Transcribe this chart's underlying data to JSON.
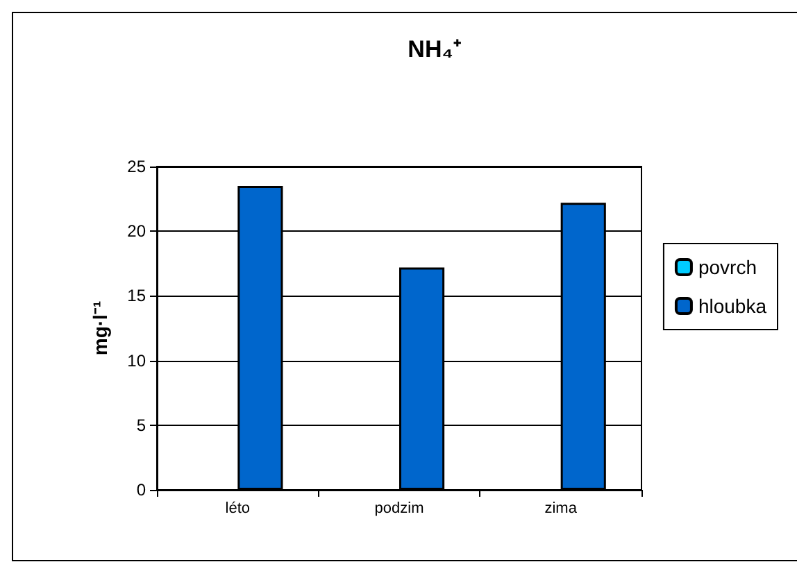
{
  "chart_data": {
    "type": "bar",
    "title": "NH₄⁺",
    "ylabel": "mg·l⁻¹",
    "categories": [
      "léto",
      "podzim",
      "zima"
    ],
    "series": [
      {
        "name": "povrch",
        "color": "#00ccff",
        "values": [
          null,
          null,
          null
        ]
      },
      {
        "name": "hloubka",
        "color": "#0066cc",
        "values": [
          23.5,
          17.2,
          22.2
        ]
      }
    ],
    "ylim": [
      0,
      25
    ],
    "yticks": [
      0,
      5,
      10,
      15,
      20,
      25
    ],
    "grid": "y",
    "legend": "right"
  }
}
